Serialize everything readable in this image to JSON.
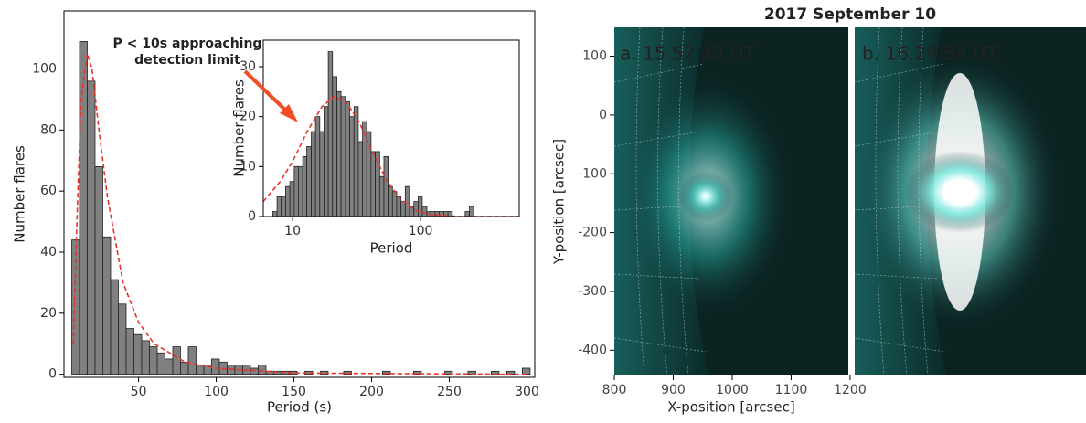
{
  "chart_data": [
    {
      "type": "histogram",
      "xlabel": "Period (s)",
      "ylabel": "Number flares",
      "color": "#808080",
      "bins": [
        7,
        12,
        17,
        22,
        27,
        32,
        37,
        42,
        47,
        52,
        57,
        62,
        67,
        72,
        77,
        82,
        87,
        92,
        97,
        102,
        107,
        112,
        117,
        122,
        127,
        132,
        137,
        142,
        147,
        152,
        157,
        162,
        167,
        172,
        177,
        182,
        187,
        192,
        197,
        202,
        207,
        212,
        217,
        222,
        227,
        232,
        237,
        242,
        247,
        252,
        257,
        262,
        267,
        272,
        277,
        282,
        287,
        292,
        297,
        302
      ],
      "values": [
        44,
        109,
        96,
        68,
        45,
        31,
        23,
        15,
        13,
        11,
        9,
        7,
        5,
        9,
        4,
        9,
        3,
        3,
        5,
        4,
        3,
        3,
        3,
        2,
        3,
        1,
        1,
        1,
        1,
        0,
        1,
        0,
        1,
        0,
        0,
        1,
        0,
        0,
        0,
        0,
        1,
        0,
        0,
        0,
        1,
        0,
        0,
        0,
        1,
        0,
        0,
        1,
        0,
        0,
        1,
        0,
        1,
        0,
        2
      ],
      "fit": {
        "color": "#e8332a",
        "x": [
          8,
          10,
          13,
          17,
          20,
          25,
          30,
          40,
          50,
          60,
          80,
          100,
          150,
          300
        ],
        "values": [
          10,
          45,
          90,
          105,
          100,
          78,
          58,
          30,
          17,
          10,
          4,
          2,
          0.4,
          0
        ]
      },
      "xlim": [
        2,
        305
      ],
      "ylim": [
        -1,
        119
      ],
      "xticks": [
        50,
        100,
        150,
        200,
        250,
        300
      ],
      "yticks": [
        0,
        20,
        40,
        60,
        80,
        100
      ],
      "annotation": {
        "lines": [
          "P < 10s approaching",
          "detection limit"
        ],
        "color": "#f04e23"
      }
    },
    {
      "type": "histogram",
      "xscale": "log",
      "xlabel": "Period",
      "ylabel": "Number flares",
      "color": "#808080",
      "bins": [
        7,
        7.56,
        8.16,
        8.82,
        9.52,
        10.3,
        11.1,
        12.0,
        12.9,
        14.0,
        15.1,
        16.3,
        17.6,
        19.0,
        20.5,
        22.2,
        23.9,
        25.9,
        27.9,
        30.2,
        32.6,
        35.2,
        38.0,
        41.0,
        44.3,
        47.9,
        51.7,
        55.8,
        60.3,
        65.1,
        70.3,
        75.9,
        82.0,
        88.6,
        95.7,
        103,
        112,
        120,
        130,
        140,
        152,
        164,
        177,
        191,
        206,
        223,
        241,
        260,
        281,
        303
      ],
      "values": [
        1,
        4,
        4,
        6,
        7,
        10,
        10,
        12,
        14,
        17,
        20,
        17,
        22,
        33,
        28,
        25,
        24,
        23,
        20,
        22,
        15,
        19,
        17,
        13,
        13,
        8,
        12,
        6,
        5,
        4,
        3,
        6,
        2,
        3,
        4,
        2,
        1,
        1,
        1,
        1,
        1,
        1,
        0,
        0,
        0,
        1,
        2,
        0,
        0
      ],
      "fit": {
        "color": "#e8332a",
        "x": [
          5.9,
          8,
          10,
          13,
          17,
          21,
          26,
          33,
          42,
          55,
          70,
          90,
          120,
          200,
          590
        ],
        "values": [
          3,
          7,
          11,
          17,
          22,
          24,
          23,
          19,
          13,
          7,
          3.5,
          1.3,
          0.4,
          0,
          0
        ]
      },
      "xlim": [
        5.9,
        590
      ],
      "ylim": [
        0,
        35.3
      ],
      "xticks": [
        10,
        100
      ],
      "yticks": [
        0,
        10,
        20,
        30
      ]
    },
    {
      "type": "image",
      "title": "2017 September 10",
      "xlabel": "X-position [arcsec]",
      "ylabel": "Y-position [arcsec]",
      "panels": [
        "a. 15.52:42 UT",
        "b. 16.29:54 UT"
      ],
      "xlim": [
        800,
        1197
      ],
      "ylim": [
        -443,
        149
      ],
      "xticks": [
        800,
        900,
        1000,
        1100,
        1200
      ],
      "yticks": [
        100,
        0,
        -100,
        -200,
        -300,
        -400
      ]
    }
  ]
}
